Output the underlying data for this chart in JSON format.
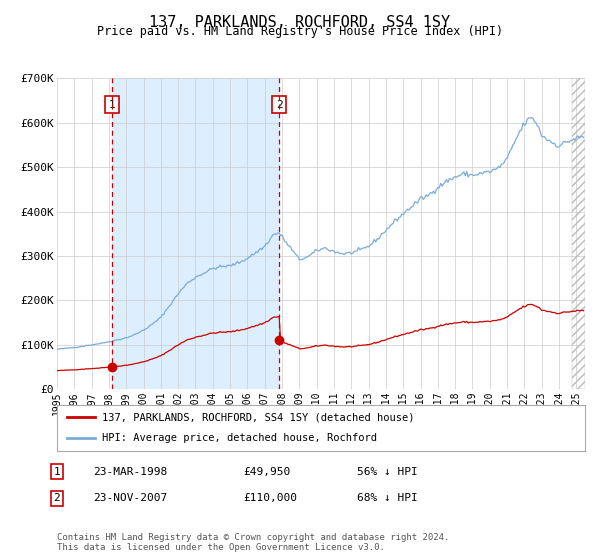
{
  "title": "137, PARKLANDS, ROCHFORD, SS4 1SY",
  "subtitle": "Price paid vs. HM Land Registry's House Price Index (HPI)",
  "sale1_price": 49950,
  "sale2_price": 110000,
  "legend_line1": "137, PARKLANDS, ROCHFORD, SS4 1SY (detached house)",
  "legend_line2": "HPI: Average price, detached house, Rochford",
  "table_row1": [
    "1",
    "23-MAR-1998",
    "£49,950",
    "56% ↓ HPI"
  ],
  "table_row2": [
    "2",
    "23-NOV-2007",
    "£110,000",
    "68% ↓ HPI"
  ],
  "footnote1": "Contains HM Land Registry data © Crown copyright and database right 2024.",
  "footnote2": "This data is licensed under the Open Government Licence v3.0.",
  "sale_dot_color": "#cc0000",
  "hpi_line_color": "#7aacda",
  "price_line_color": "#cc0000",
  "vline_color": "#cc0000",
  "shade_color": "#ddeeff",
  "grid_color": "#cccccc",
  "background_color": "#ffffff",
  "xstart": 1995.0,
  "xend": 2025.5,
  "ymax": 700000,
  "ymin": 0,
  "yticks": [
    0,
    100000,
    200000,
    300000,
    400000,
    500000,
    600000,
    700000
  ],
  "ytick_labels": [
    "£0",
    "£100K",
    "£200K",
    "£300K",
    "£400K",
    "£500K",
    "£600K",
    "£700K"
  ]
}
